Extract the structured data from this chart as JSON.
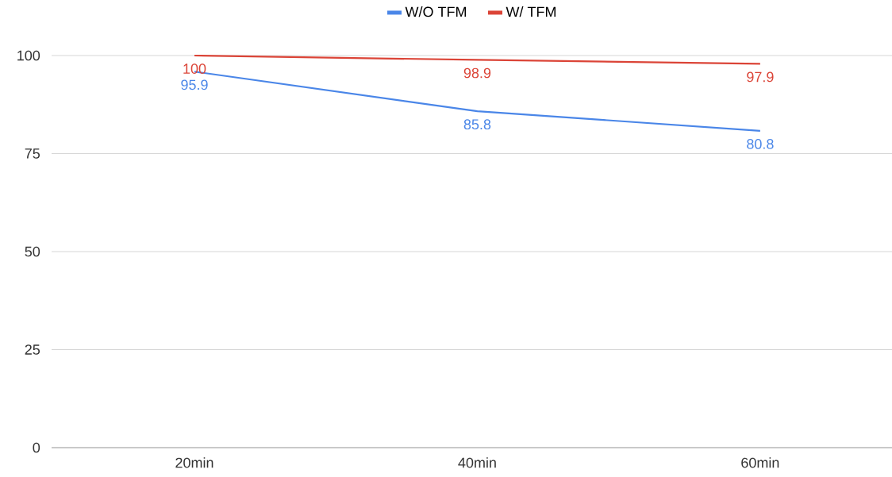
{
  "chart_data": {
    "type": "line",
    "categories": [
      "20min",
      "40min",
      "60min"
    ],
    "series": [
      {
        "name": "W/O TFM",
        "color": "#4a86e8",
        "values": [
          95.9,
          85.8,
          80.8
        ]
      },
      {
        "name": "W/ TFM",
        "color": "#db4437",
        "values": [
          100,
          98.9,
          97.9
        ]
      }
    ],
    "ylim": [
      0,
      100
    ],
    "yticks": [
      0,
      25,
      50,
      75,
      100
    ],
    "grid": "y",
    "legend": "top",
    "data_labels": true,
    "marker": "none"
  }
}
